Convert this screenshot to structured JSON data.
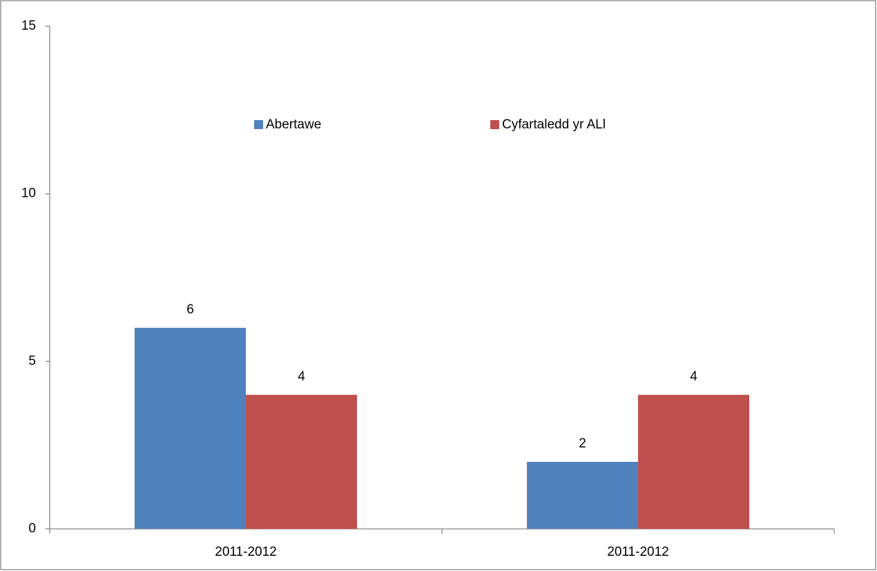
{
  "chart_data": {
    "type": "bar",
    "categories": [
      "2011-2012",
      "2011-2012"
    ],
    "series": [
      {
        "name": "Abertawe",
        "color": "#4f81bd",
        "values": [
          6,
          2
        ]
      },
      {
        "name": "Cyfartaledd yr ALl",
        "color": "#c0504d",
        "values": [
          4,
          4
        ]
      }
    ],
    "ylim": [
      0,
      15
    ],
    "yticks": [
      0,
      5,
      10,
      15
    ],
    "grid": false,
    "legend": "top"
  }
}
